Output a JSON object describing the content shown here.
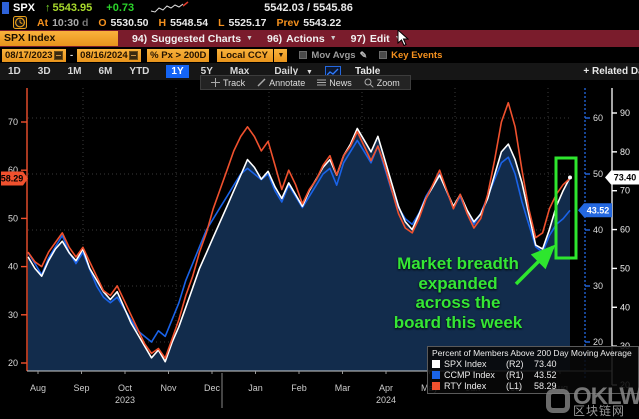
{
  "header": {
    "ticker": "SPX",
    "arrow": "↑",
    "price": "5543.95",
    "change": "+0.73",
    "bid_ask": "5542.03 / 5545.86",
    "at_label": "At",
    "time": "10:30",
    "session": "d",
    "o_label": "O",
    "open": "5530.50",
    "h_label": "H",
    "high": "5548.54",
    "l_label": "L",
    "low": "5525.17",
    "prev_label": "Prev",
    "prev": "5543.22"
  },
  "menubar": {
    "security": "SPX Index",
    "items": [
      {
        "num": "94)",
        "label": "Suggested Charts"
      },
      {
        "num": "96)",
        "label": "Actions"
      },
      {
        "num": "97)",
        "label": "Edit"
      }
    ]
  },
  "filterbar": {
    "date_from": "08/17/2023",
    "dash": "-",
    "date_to": "08/16/2024",
    "study": "% Px > 200D",
    "currency": "Local CCY",
    "mov_avgs": "Mov Avgs",
    "key_events": "Key Events"
  },
  "rangebar": {
    "ranges": [
      "1D",
      "3D",
      "1M",
      "6M",
      "YTD",
      "1Y",
      "5Y",
      "Max"
    ],
    "selected": "1Y",
    "frequency": "Daily",
    "table_label": "Table",
    "related_label": "+ Related Dat"
  },
  "chart_toolbar": {
    "items": [
      "Track",
      "Annotate",
      "News",
      "Zoom"
    ]
  },
  "annotation": {
    "lines": [
      "Market breadth",
      "expanded",
      "across the",
      "board this week"
    ],
    "color": "#35e635"
  },
  "legend": {
    "title": "Percent of Members Above 200 Day Moving Average",
    "entries": [
      {
        "label": "SPX Index",
        "axis": "(R2)",
        "value": "73.40",
        "color": "#ffffff"
      },
      {
        "label": "CCMP Index",
        "axis": "(R1)",
        "value": "43.52",
        "color": "#1a63e8"
      },
      {
        "label": "RTY Index",
        "axis": "(L1)",
        "value": "58.29",
        "color": "#f0512e"
      }
    ]
  },
  "watermark": {
    "brand": "OKLW",
    "cn": "区块链网"
  },
  "colors": {
    "menubar_red": "#7a1c2c",
    "amber": "#f5a028",
    "selected_blue": "#1464f4",
    "annotation_green": "#2ee62e",
    "area_fill": "#122c4c"
  },
  "chart_data": {
    "type": "line",
    "title": "Percent of Members Above 200 Day Moving Average",
    "x_months": [
      "Aug",
      "Sep",
      "Oct",
      "Nov",
      "Dec",
      "Jan",
      "Feb",
      "Mar",
      "Apr",
      "May",
      "Jun",
      "Jul",
      "Aug"
    ],
    "years": [
      {
        "label": "2023",
        "month_index": 2
      },
      {
        "label": "2024",
        "month_index": 8
      }
    ],
    "x_range": [
      "08/17/2023",
      "08/16/2024"
    ],
    "grid": true,
    "axes": {
      "L1": {
        "side": "left",
        "color": "#f0512e",
        "ticks": [
          70,
          60,
          50,
          40,
          30,
          20
        ],
        "badge": "58.29"
      },
      "R1": {
        "side": "right-inner",
        "color": "#2468e0",
        "ticks": [
          60,
          50,
          40,
          30,
          20
        ],
        "badge": "43.52"
      },
      "R2": {
        "side": "right-outer",
        "color": "#ffffff",
        "ticks": [
          90,
          80,
          70,
          60,
          50,
          40,
          30,
          20
        ],
        "badge": "73.40"
      }
    },
    "series": [
      {
        "name": "SPX Index",
        "axis": "R2",
        "color": "#ffffff",
        "fill": true,
        "last": 73.4,
        "values": [
          53,
          50,
          48,
          52,
          55,
          57,
          54,
          52,
          55,
          50,
          47,
          44,
          42,
          44,
          40,
          36,
          33,
          30,
          27,
          29,
          26,
          31,
          35,
          40,
          45,
          50,
          54,
          58,
          62,
          66,
          70,
          74,
          78,
          76,
          73,
          75,
          71,
          68,
          72,
          69,
          66,
          70,
          73,
          76,
          78,
          74,
          79,
          82,
          86,
          83,
          80,
          84,
          78,
          72,
          66,
          62,
          60,
          64,
          68,
          71,
          74,
          70,
          66,
          69,
          65,
          62,
          64,
          68,
          74,
          80,
          82,
          78,
          72,
          64,
          56,
          55,
          60,
          66,
          70,
          73.4
        ]
      },
      {
        "name": "CCMP Index",
        "axis": "R1",
        "color": "#1a63e8",
        "fill": false,
        "last": 43.52,
        "values": [
          36,
          34,
          32,
          35,
          37,
          39,
          36,
          34,
          36,
          33,
          30,
          28,
          27,
          28,
          26,
          24,
          22,
          21,
          20,
          22,
          21,
          24,
          27,
          31,
          34,
          37,
          40,
          42,
          44,
          46,
          48,
          50,
          51,
          50,
          49,
          50,
          47,
          45,
          48,
          46,
          44,
          46,
          48,
          50,
          51,
          48,
          52,
          54,
          56,
          54,
          52,
          55,
          51,
          47,
          44,
          42,
          41,
          43,
          46,
          48,
          50,
          47,
          44,
          46,
          43,
          41,
          43,
          46,
          49,
          52,
          53,
          50,
          45,
          41,
          37,
          36,
          39,
          41,
          42,
          43.5
        ]
      },
      {
        "name": "RTY Index",
        "axis": "L1",
        "color": "#f0512e",
        "fill": false,
        "last": 58.29,
        "values": [
          43,
          41,
          40,
          43,
          45,
          47,
          44,
          42,
          44,
          41,
          38,
          35,
          34,
          36,
          33,
          30,
          27,
          24,
          22,
          23,
          21,
          25,
          29,
          34,
          38,
          43,
          47,
          52,
          56,
          60,
          64,
          67,
          69,
          67,
          64,
          66,
          61,
          56,
          60,
          57,
          53,
          56,
          58,
          61,
          63,
          59,
          63,
          65,
          68,
          65,
          62,
          65,
          61,
          56,
          51,
          48,
          47,
          50,
          54,
          57,
          60,
          56,
          52,
          55,
          51,
          48,
          50,
          55,
          62,
          70,
          74,
          69,
          60,
          52,
          46,
          47,
          52,
          55,
          57,
          58.3
        ]
      }
    ],
    "highlight_box": {
      "color": "#2ee62e"
    }
  }
}
